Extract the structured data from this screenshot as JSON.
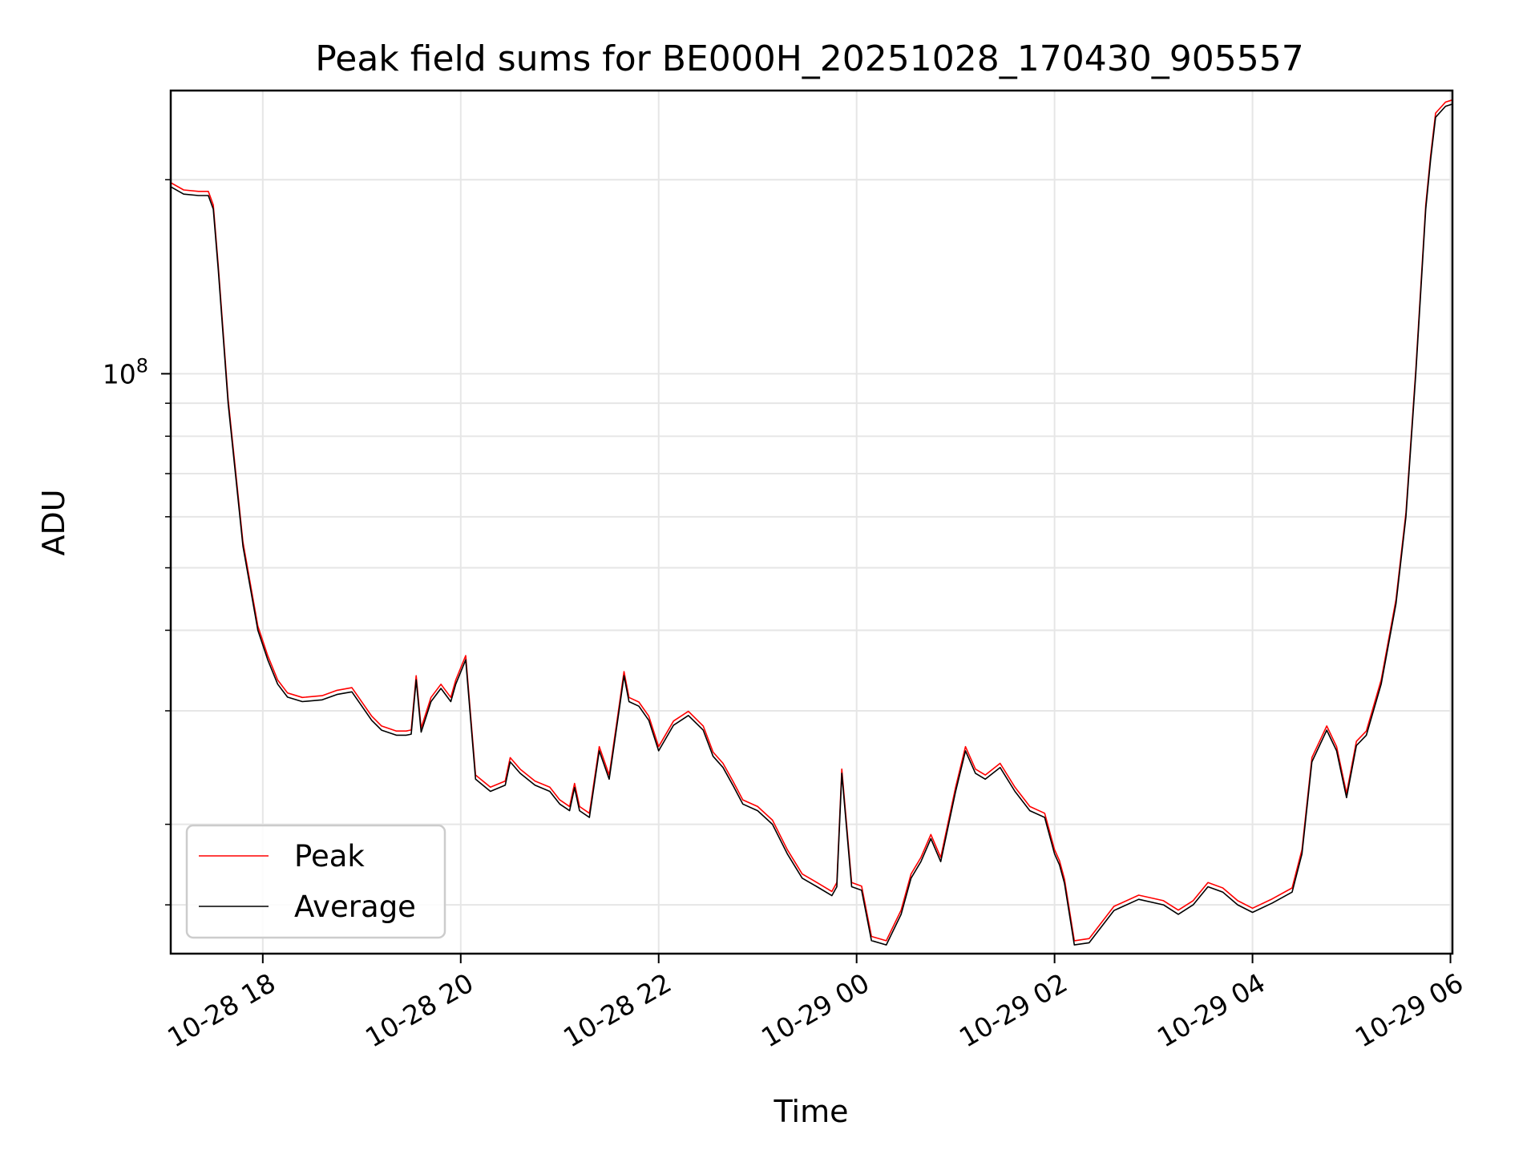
{
  "chart_data": {
    "type": "line",
    "title": "Peak field sums for BE000H_20251028_170430_905557",
    "xlabel": "Time",
    "ylabel": "ADU",
    "yscale": "log",
    "grid": true,
    "legend_position": "lower-left",
    "x_unit": "hours since 10-28 00:00",
    "xlim": [
      17.07,
      30.02
    ],
    "ylim": [
      12600000,
      275000000
    ],
    "x_ticks": [
      {
        "value": 18,
        "label": "10-28 18"
      },
      {
        "value": 20,
        "label": "10-28 20"
      },
      {
        "value": 22,
        "label": "10-28 22"
      },
      {
        "value": 24,
        "label": "10-29 00"
      },
      {
        "value": 26,
        "label": "10-29 02"
      },
      {
        "value": 28,
        "label": "10-29 04"
      },
      {
        "value": 30,
        "label": "10-29 06"
      }
    ],
    "y_major_ticks": [
      {
        "value": 100000000,
        "base": "10",
        "exp": "8"
      }
    ],
    "y_minor_ticks": [
      15000000,
      20000000,
      30000000,
      40000000,
      50000000,
      60000000,
      70000000,
      80000000,
      90000000,
      200000000
    ],
    "series": [
      {
        "name": "Peak",
        "color": "#ff0000"
      },
      {
        "name": "Average",
        "color": "#000000"
      }
    ],
    "x": [
      17.07,
      17.2,
      17.35,
      17.45,
      17.5,
      17.55,
      17.65,
      17.8,
      17.95,
      18.05,
      18.15,
      18.25,
      18.4,
      18.6,
      18.75,
      18.9,
      19.1,
      19.2,
      19.35,
      19.45,
      19.5,
      19.55,
      19.6,
      19.7,
      19.8,
      19.9,
      19.95,
      20.05,
      20.15,
      20.3,
      20.45,
      20.5,
      20.6,
      20.75,
      20.9,
      21.0,
      21.1,
      21.15,
      21.2,
      21.3,
      21.4,
      21.5,
      21.6,
      21.65,
      21.7,
      21.8,
      21.9,
      22.0,
      22.15,
      22.3,
      22.45,
      22.55,
      22.65,
      22.75,
      22.85,
      23.0,
      23.15,
      23.3,
      23.45,
      23.6,
      23.75,
      23.8,
      23.85,
      23.95,
      24.05,
      24.15,
      24.3,
      24.45,
      24.55,
      24.65,
      24.75,
      24.85,
      25.0,
      25.1,
      25.2,
      25.3,
      25.45,
      25.6,
      25.75,
      25.9,
      26.0,
      26.05,
      26.1,
      26.2,
      26.35,
      26.6,
      26.85,
      27.1,
      27.25,
      27.4,
      27.55,
      27.7,
      27.85,
      28.0,
      28.2,
      28.4,
      28.5,
      28.6,
      28.75,
      28.85,
      28.95,
      29.05,
      29.15,
      29.3,
      29.45,
      29.55,
      29.65,
      29.75,
      29.8,
      29.85,
      29.95,
      30.02
    ],
    "values": [
      195000000,
      190000000,
      189000000,
      189000000,
      180000000,
      145000000,
      90000000,
      54000000,
      40000000,
      36000000,
      33000000,
      31500000,
      31000000,
      31200000,
      31800000,
      32100000,
      29000000,
      28000000,
      27500000,
      27500000,
      27600000,
      33500000,
      27800000,
      31000000,
      32500000,
      31000000,
      33000000,
      36000000,
      23500000,
      22500000,
      23000000,
      25000000,
      24000000,
      23000000,
      22500000,
      21500000,
      21000000,
      22800000,
      21000000,
      20500000,
      26000000,
      23500000,
      30000000,
      34000000,
      31000000,
      30500000,
      29000000,
      26000000,
      28500000,
      29500000,
      28000000,
      25500000,
      24500000,
      23000000,
      21500000,
      21000000,
      20000000,
      18000000,
      16500000,
      16000000,
      15500000,
      16000000,
      24000000,
      16000000,
      15800000,
      13200000,
      13000000,
      14500000,
      16500000,
      17500000,
      19000000,
      17500000,
      22500000,
      26000000,
      24000000,
      23500000,
      24500000,
      22500000,
      21000000,
      20500000,
      18000000,
      17300000,
      16200000,
      13000000,
      13100000,
      14700000,
      15300000,
      15000000,
      14500000,
      15000000,
      16000000,
      15700000,
      15000000,
      14600000,
      15100000,
      15700000,
      18000000,
      25000000,
      28000000,
      26000000,
      22000000,
      26500000,
      27500000,
      33000000,
      44000000,
      60000000,
      100000000,
      180000000,
      215000000,
      250000000,
      260000000,
      262000000
    ]
  }
}
